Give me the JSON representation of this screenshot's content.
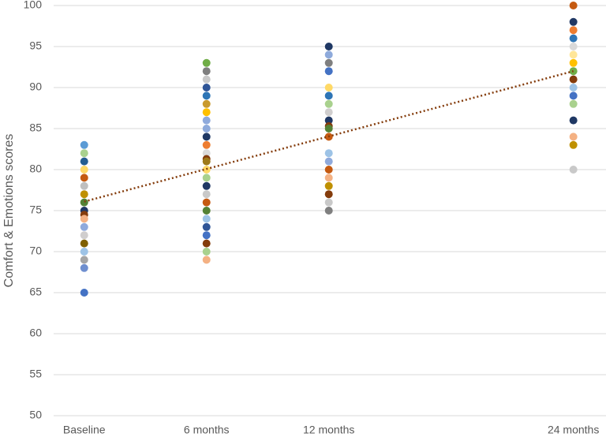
{
  "chart_data": {
    "type": "scatter",
    "y_label": "Comfort & Emotions scores",
    "xlim": [
      -1.5,
      25.6
    ],
    "xticks": [
      {
        "value": 0,
        "label": "Baseline"
      },
      {
        "value": 6,
        "label": "6 months"
      },
      {
        "value": 12,
        "label": "12 months"
      },
      {
        "value": 24,
        "label": "24 months"
      }
    ],
    "ylim": [
      50,
      100
    ],
    "yticks": [
      50,
      55,
      60,
      65,
      70,
      75,
      80,
      85,
      90,
      95,
      100
    ],
    "grid": true,
    "series": [
      {
        "x": [
          0,
          0,
          0,
          0,
          0,
          0,
          0,
          0,
          0,
          0,
          0,
          0,
          0,
          0,
          0,
          0,
          0,
          0
        ],
        "values": [
          83,
          82,
          81,
          80,
          79,
          78,
          77,
          76,
          75,
          74.5,
          74,
          73,
          72,
          71,
          70,
          69,
          68,
          65
        ],
        "colors": [
          "#5b9bd5",
          "#a9d18e",
          "#255e91",
          "#ffd966",
          "#c55a11",
          "#bfbfbf",
          "#bf9000",
          "#548235",
          "#203864",
          "#843c0c",
          "#f4b183",
          "#8faadc",
          "#d0cece",
          "#7f6000",
          "#9dc3e6",
          "#a5a5a5",
          "#6f8fcf",
          "#4472c4"
        ]
      },
      {
        "x": [
          6,
          6,
          6,
          6,
          6,
          6,
          6,
          6,
          6,
          6,
          6,
          6,
          6,
          6,
          6,
          6,
          6,
          6,
          6,
          6,
          6,
          6,
          6,
          6,
          6,
          6
        ],
        "values": [
          93,
          92,
          91,
          90,
          89,
          88,
          87,
          86,
          85,
          84,
          83,
          82,
          81.3,
          81,
          80,
          79,
          78,
          77,
          76,
          75,
          74,
          73,
          72,
          71,
          70,
          69
        ],
        "colors": [
          "#70ad47",
          "#7f7f7f",
          "#c9c9c9",
          "#2f5597",
          "#2e75b6",
          "#c99a2e",
          "#ffc000",
          "#8faadc",
          "#8eaadb",
          "#1f3864",
          "#ed7d31",
          "#dbdbdb",
          "#843c0c",
          "#9e7a1a",
          "#ffd966",
          "#a9d18e",
          "#203864",
          "#c9c9c9",
          "#c55a11",
          "#548235",
          "#9dc3e6",
          "#2f5597",
          "#4472c4",
          "#843c0c",
          "#a9d18e",
          "#f4b183"
        ]
      },
      {
        "x": [
          12,
          12,
          12,
          12,
          12,
          12,
          12,
          12,
          12,
          12,
          12,
          12,
          12,
          12,
          12,
          12,
          12,
          12,
          12,
          12
        ],
        "values": [
          95,
          94,
          93,
          92,
          90,
          89,
          88,
          87,
          86,
          85.3,
          85,
          84,
          82,
          81,
          80,
          79,
          78,
          77,
          76,
          75
        ],
        "colors": [
          "#1f3864",
          "#8eaadb",
          "#7f7f7f",
          "#4472c4",
          "#ffd966",
          "#2e75b6",
          "#a9d18e",
          "#d0cece",
          "#203864",
          "#843c0c",
          "#548235",
          "#c55a11",
          "#9dc3e6",
          "#8faadc",
          "#c55a11",
          "#f4b183",
          "#bf9000",
          "#843c0c",
          "#c9c9c9",
          "#7f7f7f"
        ]
      },
      {
        "x": [
          24,
          24,
          24,
          24,
          24,
          24,
          24,
          24,
          24,
          24,
          24,
          24,
          24,
          24,
          24,
          24
        ],
        "values": [
          100,
          98,
          97,
          96,
          95,
          94,
          93,
          92,
          91,
          90,
          89,
          88,
          86,
          84,
          83,
          80
        ],
        "colors": [
          "#c55a11",
          "#203864",
          "#ed7d31",
          "#2e75b6",
          "#d9d9d9",
          "#ffe699",
          "#ffc000",
          "#70ad47",
          "#843c0c",
          "#9dc3e6",
          "#4472c4",
          "#a9d18e",
          "#1f3864",
          "#f4b183",
          "#bf9000",
          "#c9c9c9"
        ]
      }
    ],
    "trendline": {
      "x": [
        0,
        24
      ],
      "values": [
        76.1,
        92
      ],
      "color": "#843c0c"
    }
  }
}
